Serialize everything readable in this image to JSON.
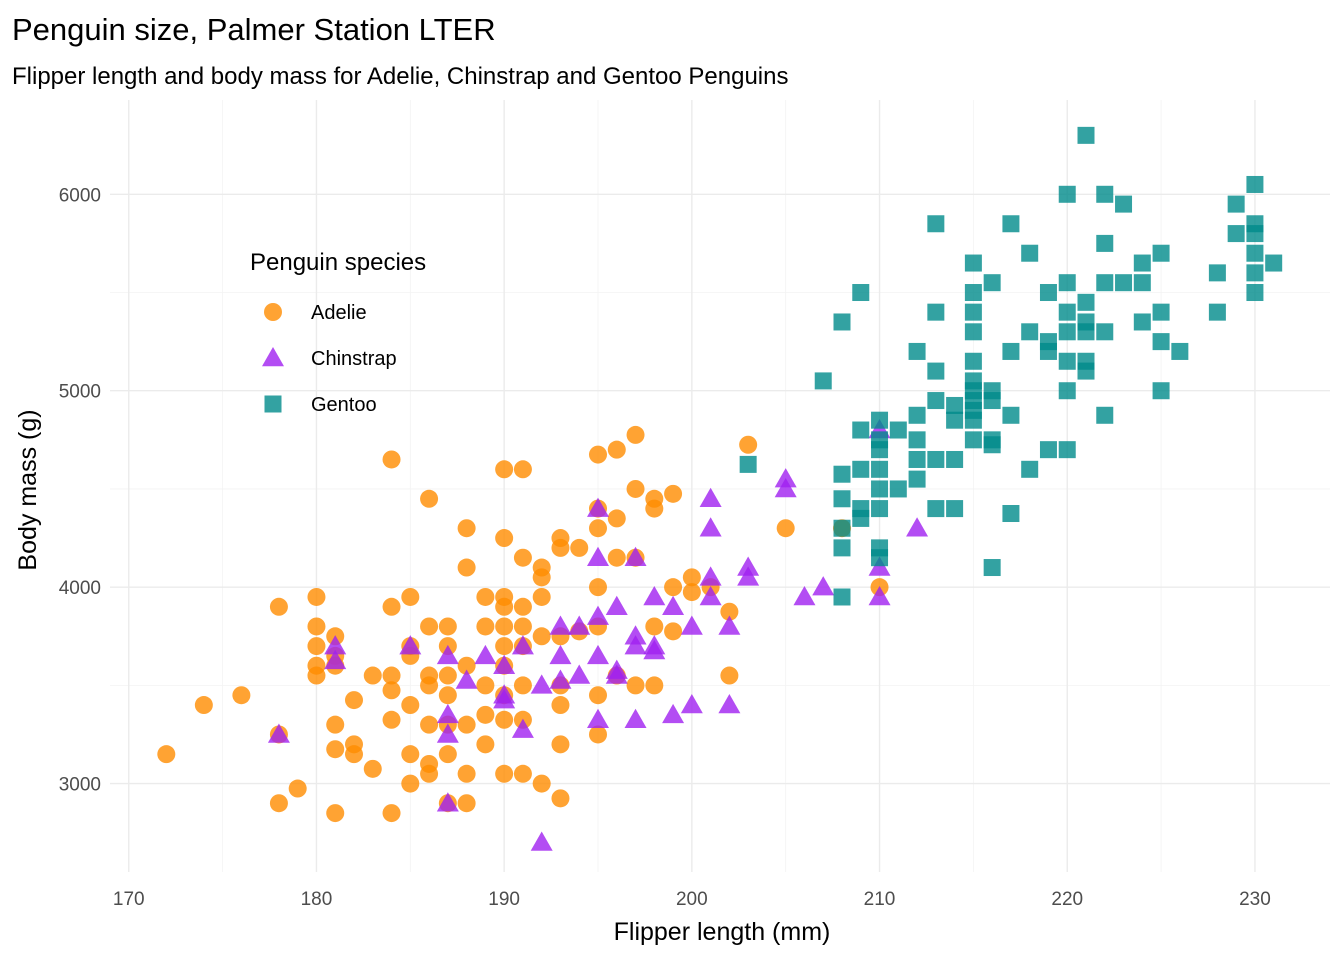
{
  "chart_data": {
    "type": "scatter",
    "title": "Penguin size, Palmer Station LTER",
    "subtitle": "Flipper length and body mass for Adelie, Chinstrap and Gentoo Penguins",
    "xlabel": "Flipper length (mm)",
    "ylabel": "Body mass (g)",
    "xlim": [
      169,
      234
    ],
    "ylim": [
      2550,
      6480
    ],
    "xticks": [
      170,
      180,
      190,
      200,
      210,
      220,
      230
    ],
    "yticks": [
      3000,
      4000,
      5000,
      6000
    ],
    "grid": true,
    "legend": {
      "title": "Penguin species",
      "position": "top-left inside"
    },
    "series": [
      {
        "name": "Adelie",
        "marker": "circle",
        "color": "#FF8C00",
        "points": [
          [
            172,
            3150
          ],
          [
            174,
            3400
          ],
          [
            176,
            3450
          ],
          [
            178,
            3900
          ],
          [
            178,
            2900
          ],
          [
            178,
            3250
          ],
          [
            179,
            2975
          ],
          [
            180,
            3950
          ],
          [
            180,
            3800
          ],
          [
            180,
            3700
          ],
          [
            180,
            3600
          ],
          [
            180,
            3550
          ],
          [
            181,
            3750
          ],
          [
            181,
            3650
          ],
          [
            181,
            3600
          ],
          [
            181,
            3300
          ],
          [
            181,
            3175
          ],
          [
            181,
            2850
          ],
          [
            182,
            3425
          ],
          [
            182,
            3200
          ],
          [
            182,
            3150
          ],
          [
            183,
            3550
          ],
          [
            183,
            3075
          ],
          [
            184,
            4650
          ],
          [
            184,
            3900
          ],
          [
            184,
            3550
          ],
          [
            184,
            3475
          ],
          [
            184,
            3325
          ],
          [
            184,
            2850
          ],
          [
            185,
            3950
          ],
          [
            185,
            3700
          ],
          [
            185,
            3650
          ],
          [
            185,
            3400
          ],
          [
            185,
            3150
          ],
          [
            185,
            3000
          ],
          [
            186,
            4450
          ],
          [
            186,
            3800
          ],
          [
            186,
            3550
          ],
          [
            186,
            3500
          ],
          [
            186,
            3300
          ],
          [
            186,
            3100
          ],
          [
            186,
            3050
          ],
          [
            187,
            3800
          ],
          [
            187,
            3700
          ],
          [
            187,
            3550
          ],
          [
            187,
            3450
          ],
          [
            187,
            3300
          ],
          [
            187,
            3150
          ],
          [
            187,
            2900
          ],
          [
            188,
            4300
          ],
          [
            188,
            4100
          ],
          [
            188,
            3600
          ],
          [
            188,
            3300
          ],
          [
            188,
            3050
          ],
          [
            188,
            2900
          ],
          [
            189,
            3950
          ],
          [
            189,
            3800
          ],
          [
            189,
            3500
          ],
          [
            189,
            3350
          ],
          [
            189,
            3200
          ],
          [
            190,
            4600
          ],
          [
            190,
            4250
          ],
          [
            190,
            3950
          ],
          [
            190,
            3900
          ],
          [
            190,
            3800
          ],
          [
            190,
            3700
          ],
          [
            190,
            3600
          ],
          [
            190,
            3450
          ],
          [
            190,
            3325
          ],
          [
            190,
            3050
          ],
          [
            191,
            4600
          ],
          [
            191,
            4150
          ],
          [
            191,
            3900
          ],
          [
            191,
            3800
          ],
          [
            191,
            3700
          ],
          [
            191,
            3500
          ],
          [
            191,
            3325
          ],
          [
            191,
            3050
          ],
          [
            192,
            4100
          ],
          [
            192,
            4050
          ],
          [
            192,
            3950
          ],
          [
            192,
            3750
          ],
          [
            192,
            3000
          ],
          [
            193,
            4250
          ],
          [
            193,
            4200
          ],
          [
            193,
            3750
          ],
          [
            193,
            3500
          ],
          [
            193,
            3400
          ],
          [
            193,
            3200
          ],
          [
            193,
            2925
          ],
          [
            194,
            4200
          ],
          [
            194,
            3775
          ],
          [
            195,
            4675
          ],
          [
            195,
            4400
          ],
          [
            195,
            4300
          ],
          [
            195,
            4000
          ],
          [
            195,
            3800
          ],
          [
            195,
            3450
          ],
          [
            195,
            3250
          ],
          [
            196,
            4700
          ],
          [
            196,
            4350
          ],
          [
            196,
            4150
          ],
          [
            196,
            3550
          ],
          [
            197,
            4775
          ],
          [
            197,
            4500
          ],
          [
            197,
            4150
          ],
          [
            197,
            3500
          ],
          [
            198,
            4450
          ],
          [
            198,
            4400
          ],
          [
            198,
            3800
          ],
          [
            198,
            3500
          ],
          [
            199,
            4475
          ],
          [
            199,
            4000
          ],
          [
            199,
            3775
          ],
          [
            200,
            4050
          ],
          [
            200,
            3975
          ],
          [
            201,
            4000
          ],
          [
            202,
            3875
          ],
          [
            202,
            3550
          ],
          [
            203,
            4725
          ],
          [
            205,
            4300
          ],
          [
            208,
            4300
          ],
          [
            210,
            4000
          ]
        ]
      },
      {
        "name": "Chinstrap",
        "marker": "triangle",
        "color": "#A020F0",
        "points": [
          [
            178,
            3250
          ],
          [
            181,
            3700
          ],
          [
            181,
            3625
          ],
          [
            185,
            3700
          ],
          [
            187,
            3650
          ],
          [
            187,
            3350
          ],
          [
            187,
            3250
          ],
          [
            187,
            2900
          ],
          [
            188,
            3525
          ],
          [
            189,
            3650
          ],
          [
            190,
            3600
          ],
          [
            190,
            3450
          ],
          [
            190,
            3425
          ],
          [
            191,
            3700
          ],
          [
            191,
            3275
          ],
          [
            192,
            3500
          ],
          [
            192,
            2700
          ],
          [
            193,
            3800
          ],
          [
            193,
            3650
          ],
          [
            193,
            3525
          ],
          [
            194,
            3800
          ],
          [
            194,
            3550
          ],
          [
            195,
            4400
          ],
          [
            195,
            4150
          ],
          [
            195,
            3850
          ],
          [
            195,
            3650
          ],
          [
            195,
            3325
          ],
          [
            196,
            3900
          ],
          [
            196,
            3550
          ],
          [
            196,
            3575
          ],
          [
            197,
            4150
          ],
          [
            197,
            3700
          ],
          [
            197,
            3750
          ],
          [
            197,
            3325
          ],
          [
            198,
            3950
          ],
          [
            198,
            3700
          ],
          [
            198,
            3675
          ],
          [
            199,
            3900
          ],
          [
            199,
            3350
          ],
          [
            200,
            3800
          ],
          [
            200,
            3400
          ],
          [
            201,
            4450
          ],
          [
            201,
            4300
          ],
          [
            201,
            4050
          ],
          [
            201,
            3950
          ],
          [
            202,
            3800
          ],
          [
            202,
            3400
          ],
          [
            203,
            4100
          ],
          [
            203,
            4050
          ],
          [
            205,
            4550
          ],
          [
            205,
            4500
          ],
          [
            206,
            3950
          ],
          [
            207,
            4000
          ],
          [
            210,
            4800
          ],
          [
            210,
            4100
          ],
          [
            210,
            3950
          ],
          [
            212,
            4300
          ]
        ]
      },
      {
        "name": "Gentoo",
        "marker": "square",
        "color": "#008B8B",
        "points": [
          [
            203,
            4625
          ],
          [
            207,
            5050
          ],
          [
            208,
            5350
          ],
          [
            208,
            4575
          ],
          [
            208,
            4450
          ],
          [
            208,
            4300
          ],
          [
            208,
            4200
          ],
          [
            208,
            3950
          ],
          [
            209,
            5500
          ],
          [
            209,
            4800
          ],
          [
            209,
            4600
          ],
          [
            209,
            4400
          ],
          [
            209,
            4350
          ],
          [
            210,
            4850
          ],
          [
            210,
            4750
          ],
          [
            210,
            4700
          ],
          [
            210,
            4600
          ],
          [
            210,
            4500
          ],
          [
            210,
            4400
          ],
          [
            210,
            4200
          ],
          [
            210,
            4150
          ],
          [
            211,
            4800
          ],
          [
            211,
            4500
          ],
          [
            212,
            5200
          ],
          [
            212,
            4875
          ],
          [
            212,
            4750
          ],
          [
            212,
            4650
          ],
          [
            212,
            4550
          ],
          [
            213,
            5850
          ],
          [
            213,
            5400
          ],
          [
            213,
            5100
          ],
          [
            213,
            4950
          ],
          [
            213,
            4650
          ],
          [
            213,
            4400
          ],
          [
            214,
            4925
          ],
          [
            214,
            4850
          ],
          [
            214,
            4650
          ],
          [
            214,
            4400
          ],
          [
            215,
            5650
          ],
          [
            215,
            5500
          ],
          [
            215,
            5400
          ],
          [
            215,
            5300
          ],
          [
            215,
            5150
          ],
          [
            215,
            5050
          ],
          [
            215,
            5000
          ],
          [
            215,
            4950
          ],
          [
            215,
            4900
          ],
          [
            215,
            4850
          ],
          [
            215,
            4750
          ],
          [
            216,
            5550
          ],
          [
            216,
            5000
          ],
          [
            216,
            4950
          ],
          [
            216,
            4750
          ],
          [
            216,
            4725
          ],
          [
            216,
            4100
          ],
          [
            217,
            5850
          ],
          [
            217,
            5200
          ],
          [
            217,
            4875
          ],
          [
            217,
            4375
          ],
          [
            218,
            5700
          ],
          [
            218,
            5300
          ],
          [
            218,
            4600
          ],
          [
            219,
            5500
          ],
          [
            219,
            5250
          ],
          [
            219,
            5200
          ],
          [
            219,
            4700
          ],
          [
            220,
            6000
          ],
          [
            220,
            5550
          ],
          [
            220,
            5400
          ],
          [
            220,
            5300
          ],
          [
            220,
            5150
          ],
          [
            220,
            5000
          ],
          [
            220,
            4700
          ],
          [
            221,
            6300
          ],
          [
            221,
            5450
          ],
          [
            221,
            5350
          ],
          [
            221,
            5300
          ],
          [
            221,
            5150
          ],
          [
            221,
            5100
          ],
          [
            222,
            6000
          ],
          [
            222,
            5750
          ],
          [
            222,
            5550
          ],
          [
            222,
            5300
          ],
          [
            222,
            4875
          ],
          [
            223,
            5950
          ],
          [
            223,
            5550
          ],
          [
            224,
            5650
          ],
          [
            224,
            5550
          ],
          [
            224,
            5350
          ],
          [
            225,
            5700
          ],
          [
            225,
            5400
          ],
          [
            225,
            5250
          ],
          [
            225,
            5000
          ],
          [
            226,
            5200
          ],
          [
            228,
            5600
          ],
          [
            228,
            5400
          ],
          [
            229,
            5800
          ],
          [
            229,
            5950
          ],
          [
            230,
            6050
          ],
          [
            230,
            5850
          ],
          [
            230,
            5800
          ],
          [
            230,
            5700
          ],
          [
            230,
            5600
          ],
          [
            230,
            5500
          ],
          [
            231,
            5650
          ]
        ]
      }
    ]
  }
}
